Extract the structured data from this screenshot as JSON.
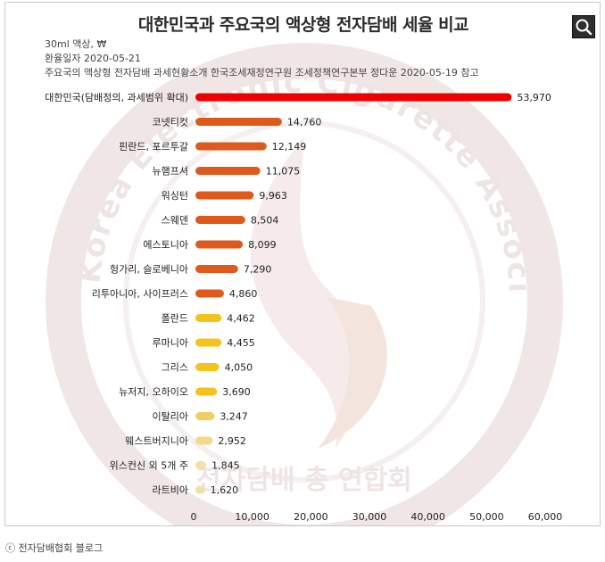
{
  "title": "대한민국과 주요국의 액상형 전자담배 세율 비교",
  "subtitle_lines": [
    "30ml 액상, ₩",
    "환율일자 2020-05-21",
    "주요국의 액상형 전자담배 과세현황소개 한국조세재정연구원 조세정책연구본부 정다운 2020-05-19 참고"
  ],
  "watermark_text": "Korea Electronic Cigarette Association",
  "watermark_korean": "전자담배 총 연합회",
  "credit": "ⓒ 전자담배협회 블로그",
  "zoom_icon": "magnifier-icon",
  "chart_data": {
    "type": "bar",
    "orientation": "horizontal",
    "title": "대한민국과 주요국의 액상형 전자담배 세율 비교",
    "xlim": [
      0,
      60000
    ],
    "xticks": [
      0,
      10000,
      20000,
      30000,
      40000,
      50000,
      60000
    ],
    "xtick_labels": [
      "0",
      "10,000",
      "20,000",
      "30,000",
      "40,000",
      "50,000",
      "60,000"
    ],
    "grid": false,
    "categories": [
      "대한민국(담배정의, 과세범위 확대)",
      "코넷티컷",
      "핀란드, 포르투갈",
      "뉴햄프셔",
      "워싱턴",
      "스웨덴",
      "에스토니아",
      "헝가리, 슬로베니아",
      "리투아니아, 사이프러스",
      "폴란드",
      "루마니아",
      "그리스",
      "뉴저지, 오하이오",
      "이탈리아",
      "웨스트버지니아",
      "위스컨신 외 5개 주",
      "라트비아"
    ],
    "values": [
      53970,
      14760,
      12149,
      11075,
      9963,
      8504,
      8099,
      7290,
      4860,
      4462,
      4455,
      4050,
      3690,
      3247,
      2952,
      1845,
      1620
    ],
    "value_labels": [
      "53,970",
      "14,760",
      "12,149",
      "11,075",
      "9,963",
      "8,504",
      "8,099",
      "7,290",
      "4,860",
      "4,462",
      "4,455",
      "4,050",
      "3,690",
      "3,247",
      "2,952",
      "1,845",
      "1,620"
    ],
    "colors": [
      "#ee0000",
      "#dd5a1c",
      "#dd5a1c",
      "#dd5a1c",
      "#dd5a1c",
      "#dd5a1c",
      "#dd5a1c",
      "#dd5a1c",
      "#dd5a1c",
      "#f6c21c",
      "#f6c21c",
      "#f6c21c",
      "#f6c21c",
      "#efcf63",
      "#f2da8a",
      "#f2e0a6",
      "#f2e0a6"
    ]
  }
}
